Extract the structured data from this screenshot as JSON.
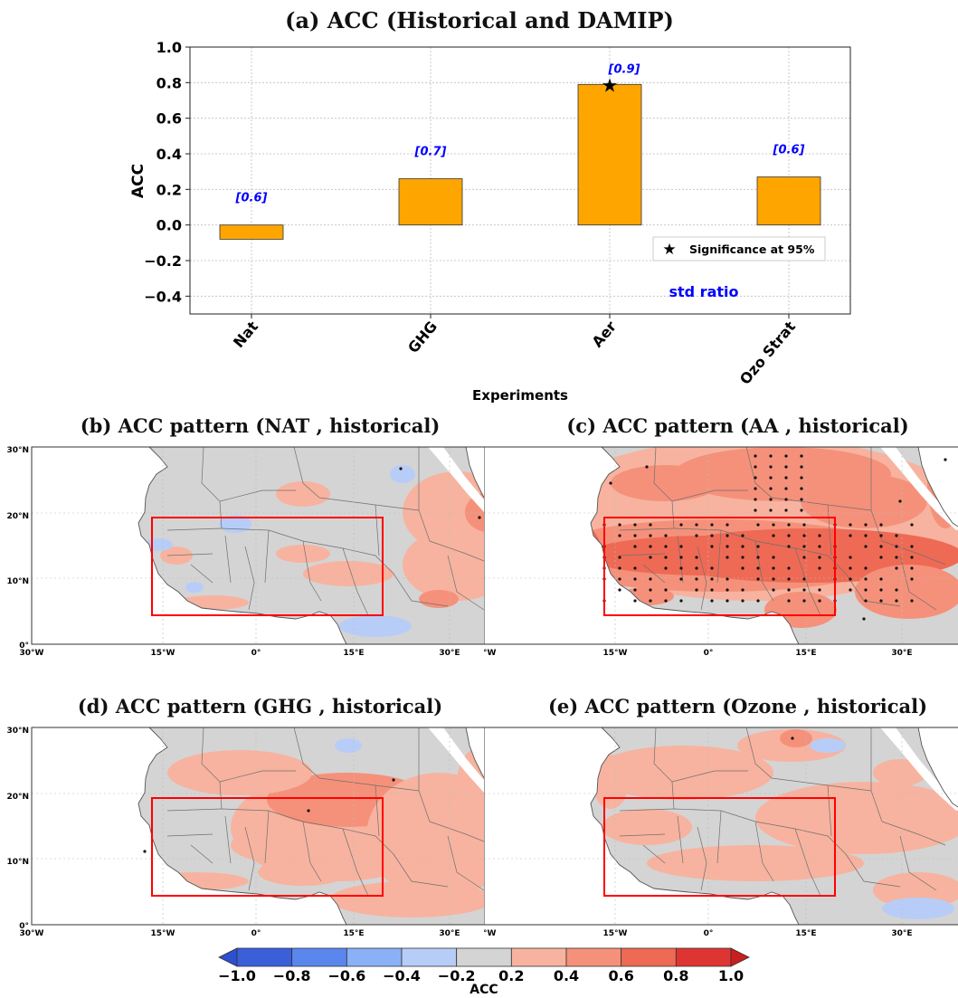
{
  "chart_data": [
    {
      "type": "bar",
      "title": "(a) ACC (Historical and DAMIP)",
      "xlabel": "Experiments",
      "ylabel": "ACC",
      "ylim": [
        -0.5,
        1.0
      ],
      "yticks": [
        "1.0",
        "0.8",
        "0.6",
        "0.4",
        "0.2",
        "0.0",
        "−0.2",
        "−0.4"
      ],
      "categories": [
        "Nat",
        "GHG",
        "Aer",
        "Ozo Strat"
      ],
      "values": [
        -0.08,
        0.26,
        0.79,
        0.27
      ],
      "std_ratio_labels": [
        "[0.6]",
        "[0.7]",
        "[0.9]",
        "[0.6]"
      ],
      "significant": [
        false,
        false,
        true,
        false
      ],
      "legend_label": "Significance at 95%",
      "legend_position": "lower-right",
      "annotation": "std ratio",
      "grid": true,
      "colors": {
        "bar": "#FFA500",
        "label": "#0000ff",
        "star": "#000000"
      }
    },
    {
      "type": "heatmap",
      "title": "(b) ACC pattern (NAT , historical)",
      "lat_ticks": [
        "30°N",
        "20°N",
        "10°N",
        "0°"
      ],
      "lon_ticks": [
        "30°W",
        "15°W",
        "0°",
        "15°E",
        "30°E"
      ]
    },
    {
      "type": "heatmap",
      "title": "(c) ACC pattern (AA , historical)",
      "lat_ticks": [
        "30°N",
        "20°N",
        "10°N",
        "0°"
      ],
      "lon_ticks": [
        "30°W",
        "15°W",
        "0°",
        "15°E",
        "30°E"
      ]
    },
    {
      "type": "heatmap",
      "title": "(d) ACC pattern (GHG , historical)",
      "lat_ticks": [
        "30°N",
        "20°N",
        "10°N",
        "0°"
      ],
      "lon_ticks": [
        "30°W",
        "15°W",
        "0°",
        "15°E",
        "30°E"
      ]
    },
    {
      "type": "heatmap",
      "title": "(e) ACC pattern (Ozone , historical)",
      "lat_ticks": [
        "30°N",
        "20°N",
        "10°N",
        "0°"
      ],
      "lon_ticks": [
        "30°W",
        "15°W",
        "0°",
        "15°E",
        "30°E"
      ]
    },
    {
      "type": "colorbar",
      "label": "ACC",
      "ticks": [
        "−1.0",
        "−0.8",
        "−0.6",
        "−0.4",
        "−0.2",
        "0.2",
        "0.4",
        "0.6",
        "0.8",
        "1.0"
      ],
      "colors": [
        "#3a5fd9",
        "#5a86ee",
        "#8ab0f7",
        "#b7cdf8",
        "#d4d4d4",
        "#f7b39f",
        "#f5917a",
        "#ee6a55",
        "#de3532"
      ]
    }
  ],
  "colors": {
    "land": "#d4d4d4",
    "region_box": "#ff0000",
    "border": "#6f6f6f"
  }
}
